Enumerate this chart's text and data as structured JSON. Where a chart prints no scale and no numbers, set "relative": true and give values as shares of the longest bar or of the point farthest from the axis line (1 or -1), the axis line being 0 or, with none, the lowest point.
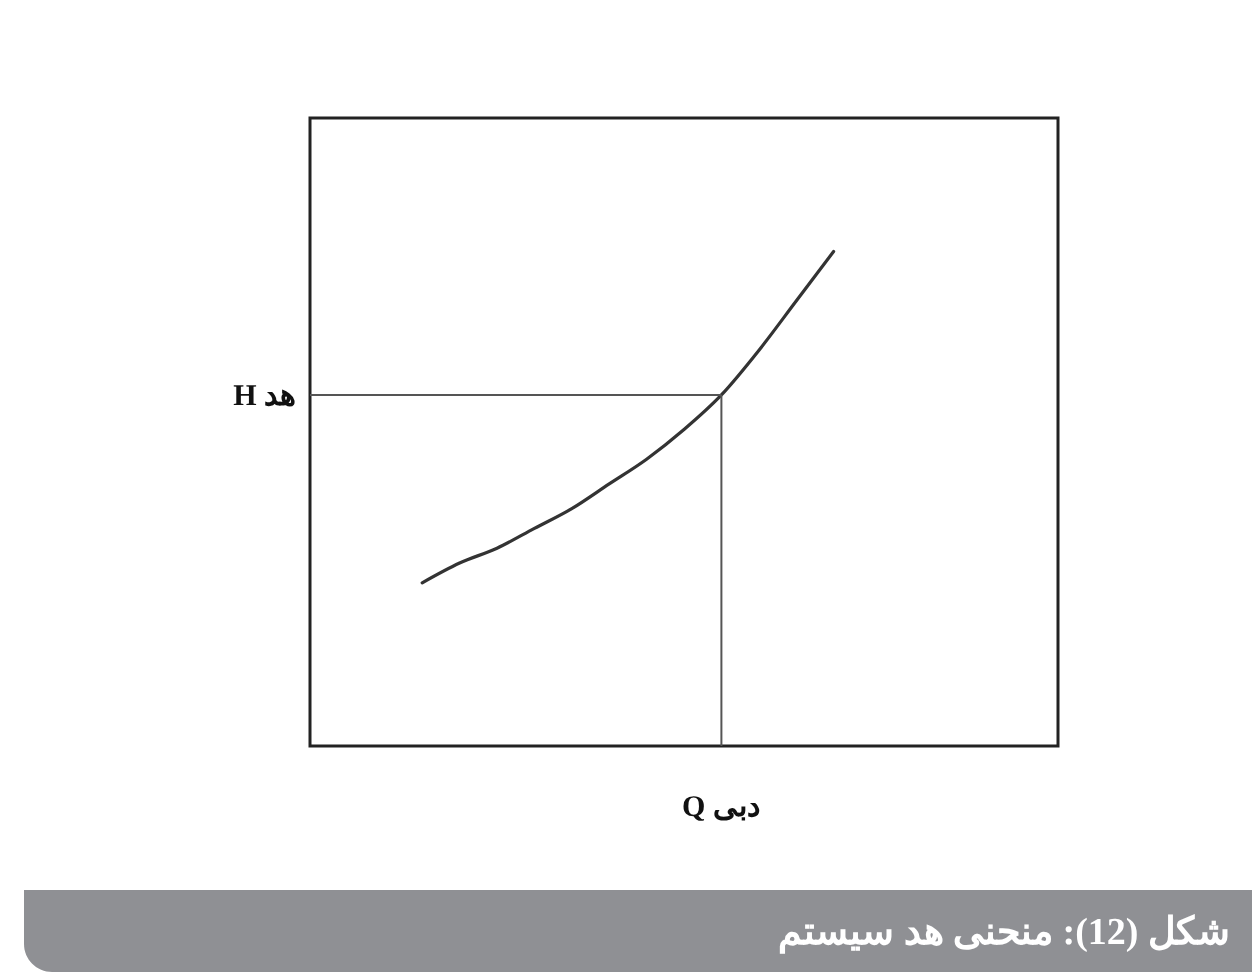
{
  "chart_data": {
    "type": "line",
    "title": "شکل (12): منحنی هد سیستم",
    "xlabel": "دبی Q",
    "categories": [
      null,
      null,
      null,
      null,
      null,
      null,
      null,
      null,
      null,
      null,
      null,
      null,
      null,
      null,
      null,
      null,
      null,
      null,
      null,
      null,
      null
    ],
    "series": [
      {
        "color": "#333333",
        "values": [
          null,
          null,
          null,
          0.33,
          0.37,
          0.4,
          0.44,
          0.48,
          0.53,
          0.58,
          0.64,
          0.71,
          0.8,
          0.9,
          1.0,
          null,
          null,
          null,
          null,
          null,
          null
        ]
      }
    ],
    "relative": true,
    "line_style": "solid",
    "ref_lines": [
      {
        "axis": "y",
        "value": 0.71,
        "label": "هد H",
        "color": "#555555"
      }
    ]
  }
}
